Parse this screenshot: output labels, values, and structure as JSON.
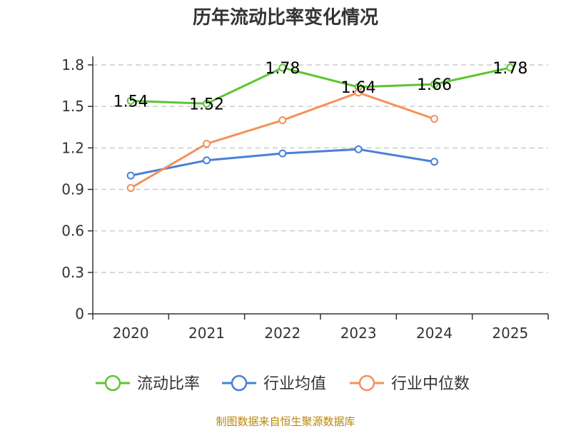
{
  "chart_data": {
    "type": "line",
    "title": "历年流动比率变化情况",
    "categories": [
      "2020",
      "2021",
      "2022",
      "2023",
      "2024",
      "2025"
    ],
    "ylim": [
      0,
      1.8
    ],
    "yticks": [
      "0",
      "0.3",
      "0.6",
      "0.9",
      "1.2",
      "1.5",
      "1.8"
    ],
    "grid": true,
    "legend_position": "bottom",
    "series": [
      {
        "name": "流动比率",
        "color": "#5cc534",
        "values": [
          1.54,
          1.52,
          1.78,
          1.64,
          1.66,
          1.78
        ],
        "labels": [
          "1.54",
          "1.52",
          "1.78",
          "1.64",
          "1.66",
          "1.78"
        ]
      },
      {
        "name": "行业均值",
        "color": "#4a7fd8",
        "values": [
          1.0,
          1.11,
          1.16,
          1.19,
          1.1,
          null
        ]
      },
      {
        "name": "行业中位数",
        "color": "#f5905a",
        "values": [
          0.91,
          1.23,
          1.4,
          1.6,
          1.41,
          null
        ]
      }
    ],
    "source": "制图数据来自恒生聚源数据库"
  }
}
